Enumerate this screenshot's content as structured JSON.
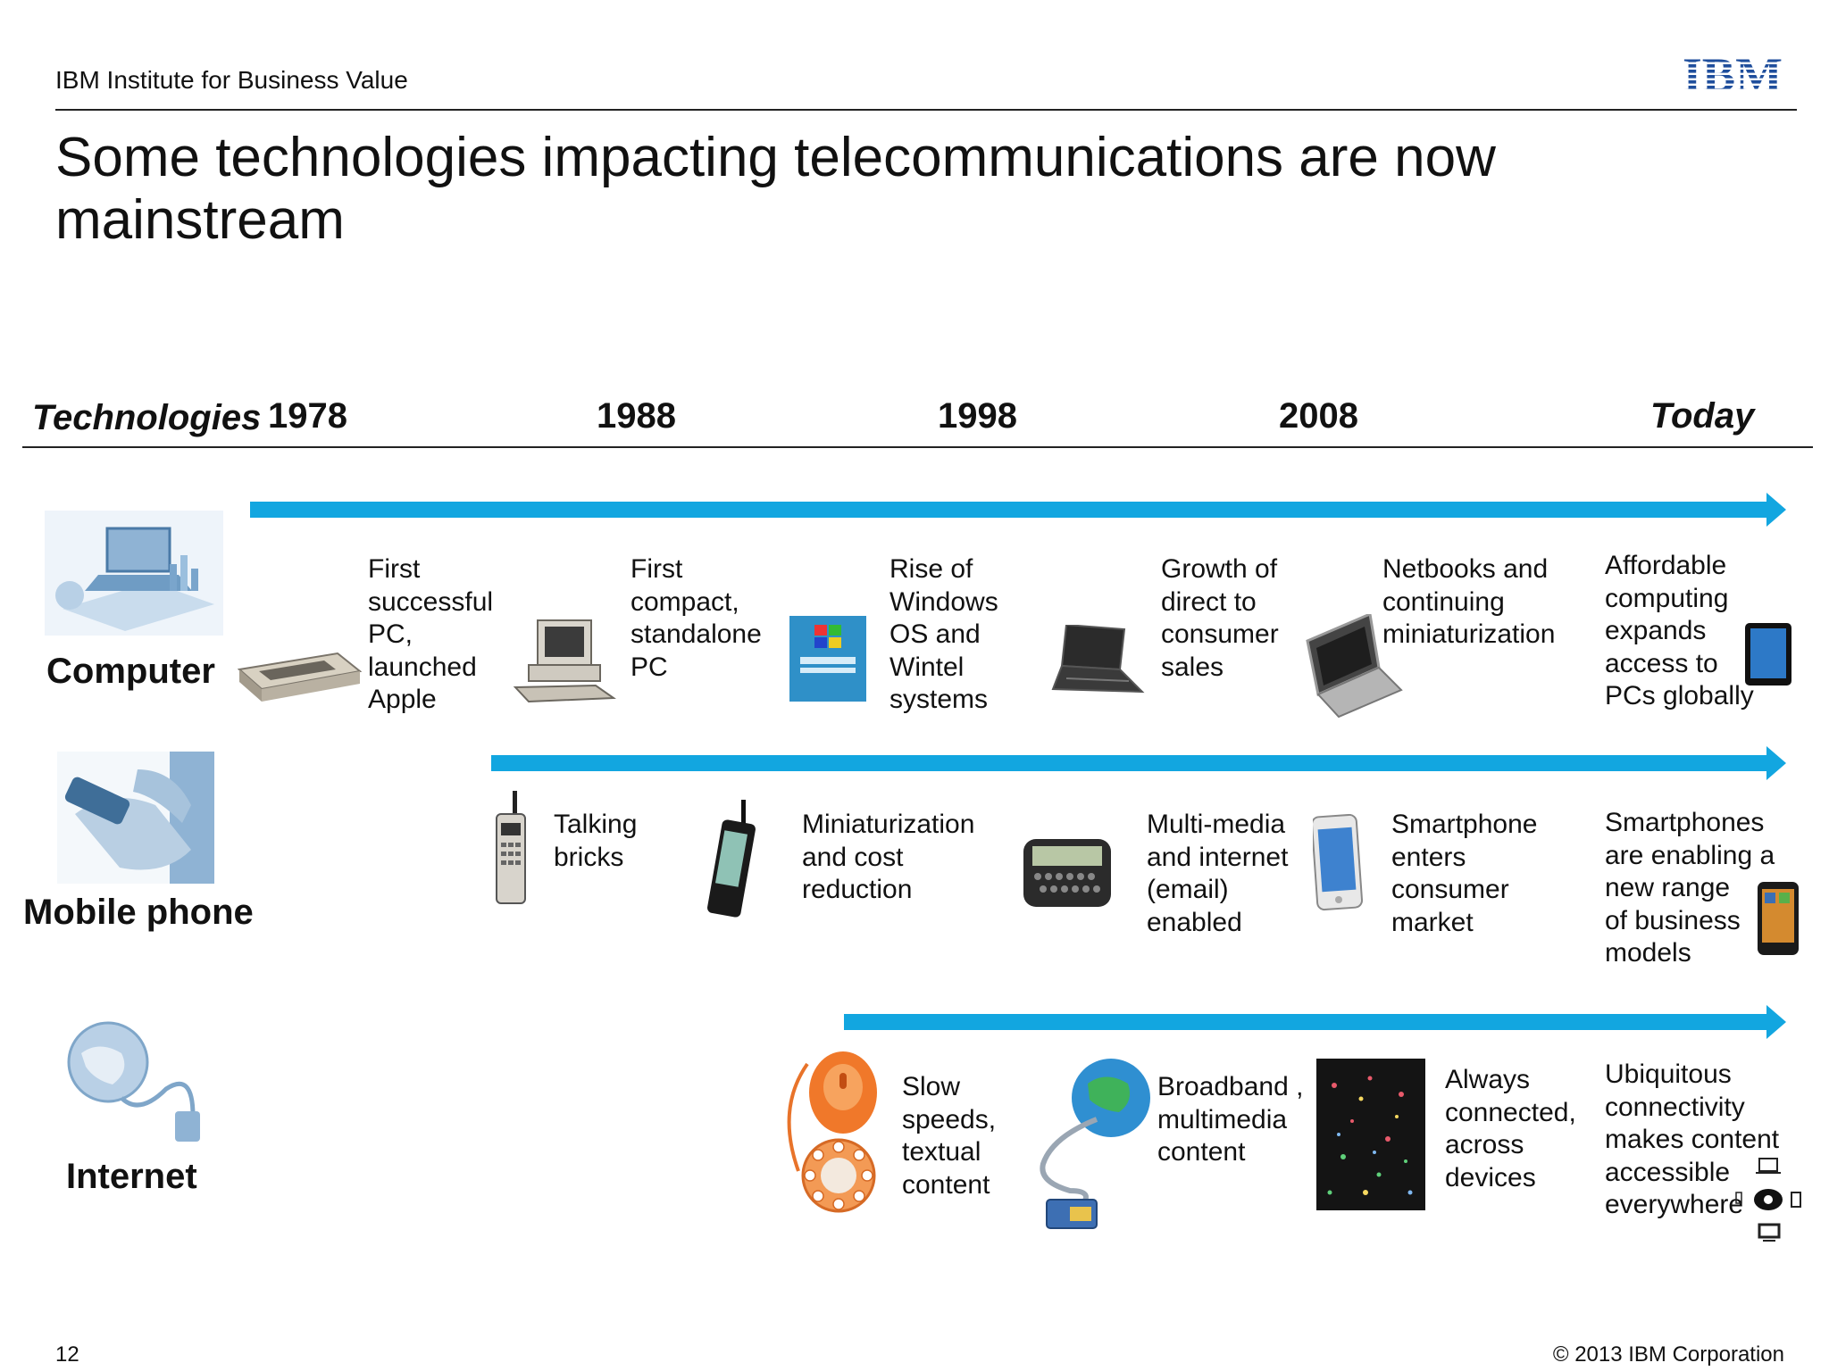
{
  "header": {
    "institute": "IBM Institute for Business Value",
    "logo_text": "IBM",
    "title_line1": "Some technologies impacting telecommunications are now",
    "title_line2": "mainstream"
  },
  "timeline": {
    "technologies_label": "Technologies",
    "years": [
      "1978",
      "1988",
      "1998",
      "2008",
      "Today"
    ]
  },
  "rows": {
    "computer": {
      "label": "Computer",
      "items": [
        {
          "lines": [
            "First",
            "successful",
            "PC,",
            "launched",
            "Apple"
          ]
        },
        {
          "lines": [
            "First",
            "compact,",
            "standalone",
            "PC"
          ]
        },
        {
          "lines": [
            "Rise of",
            "Windows",
            "OS and",
            "Wintel",
            "systems"
          ]
        },
        {
          "lines": [
            "Growth of",
            "direct to",
            "consumer",
            "sales"
          ]
        },
        {
          "lines": [
            "Netbooks and",
            "continuing",
            "miniaturization"
          ]
        },
        {
          "lines": [
            "Affordable",
            "computing",
            "expands",
            "access to",
            "PCs globally"
          ]
        }
      ]
    },
    "mobile": {
      "label": "Mobile phone",
      "items": [
        {
          "lines": [
            "Talking",
            "bricks"
          ]
        },
        {
          "lines": [
            "Miniaturization",
            "and cost",
            "reduction"
          ]
        },
        {
          "lines": [
            "Multi-media",
            "and internet",
            "(email)",
            "enabled"
          ]
        },
        {
          "lines": [
            "Smartphone",
            "enters",
            "consumer",
            "market"
          ]
        },
        {
          "lines": [
            "Smartphones",
            "are enabling a",
            "new range",
            "of business",
            "models"
          ]
        }
      ]
    },
    "internet": {
      "label": "Internet",
      "items": [
        {
          "lines": [
            "Slow",
            "speeds,",
            "textual",
            "content"
          ]
        },
        {
          "lines": [
            "Broadband ,",
            "multimedia",
            "content"
          ]
        },
        {
          "lines": [
            "Always",
            "connected,",
            "across",
            "devices"
          ]
        },
        {
          "lines": [
            "Ubiquitous",
            "connectivity",
            "makes content",
            "accessible",
            "everywhere"
          ]
        }
      ]
    }
  },
  "footer": {
    "page_number": "12",
    "copyright": "© 2013 IBM Corporation"
  },
  "colors": {
    "arrow": "#12a6e0",
    "logo": "#1f4e9c"
  }
}
